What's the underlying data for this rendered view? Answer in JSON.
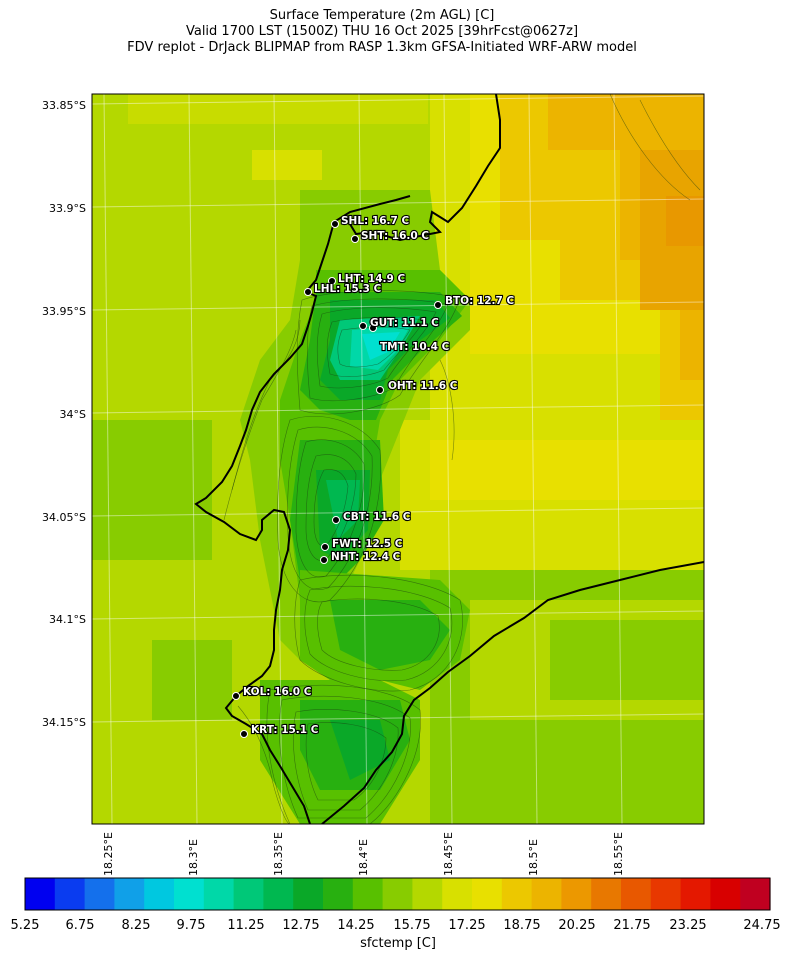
{
  "title": {
    "line1": "Surface Temperature (2m AGL) [C]",
    "line2": "Valid 1700 LST (1500Z) THU 16 Oct 2025 [39hrFcst@0627z]",
    "line3": "FDV replot - DrJack BLIPMAP from RASP 1.3km GFSA-Initiated WRF-ARW model"
  },
  "axes": {
    "lat_labels": [
      "33.85°S",
      "33.9°S",
      "33.95°S",
      "34°S",
      "34.05°S",
      "34.1°S",
      "34.15°S"
    ],
    "lon_labels": [
      "18.25°E",
      "18.3°E",
      "18.35°E",
      "18.4°E",
      "18.45°E",
      "18.5°E",
      "18.55°E"
    ]
  },
  "stations": [
    {
      "label": "SHL: 16.7 C",
      "temp": 16.7
    },
    {
      "label": "SHT: 16.0 C",
      "temp": 16.0
    },
    {
      "label": "LHT: 14.9 C",
      "temp": 14.9
    },
    {
      "label": "LHL: 15.3 C",
      "temp": 15.3
    },
    {
      "label": "BTO: 12.7 C",
      "temp": 12.7
    },
    {
      "label": "GUT: 11.1 C",
      "temp": 11.1
    },
    {
      "label": "TMT: 10.4 C",
      "temp": 10.4
    },
    {
      "label": "OHT: 11.6 C",
      "temp": 11.6
    },
    {
      "label": "CBT: 11.6 C",
      "temp": 11.6
    },
    {
      "label": "FWT: 12.5 C",
      "temp": 12.5
    },
    {
      "label": "NHT: 12.4 C",
      "temp": 12.4
    },
    {
      "label": "KOL: 16.0 C",
      "temp": 16.0
    },
    {
      "label": "KRT: 15.1 C",
      "temp": 15.1
    }
  ],
  "colorbar": {
    "label": "sfctemp [C]",
    "ticks": [
      "5.25",
      "6.75",
      "8.25",
      "9.75",
      "11.25",
      "12.75",
      "14.25",
      "15.75",
      "17.25",
      "18.75",
      "20.25",
      "21.75",
      "23.25",
      "24.75"
    ],
    "colors": [
      "#0000f0",
      "#0a3cf0",
      "#1470ec",
      "#10a0e8",
      "#00c8e0",
      "#00e0d0",
      "#00d8a8",
      "#00c878",
      "#00b850",
      "#0aa828",
      "#28b010",
      "#58c000",
      "#88cc00",
      "#b4d800",
      "#d8e000",
      "#e8e000",
      "#ecc800",
      "#ecb400",
      "#ec9800",
      "#e87800",
      "#e85800",
      "#e83800",
      "#e41800",
      "#d80000",
      "#c00020"
    ]
  }
}
